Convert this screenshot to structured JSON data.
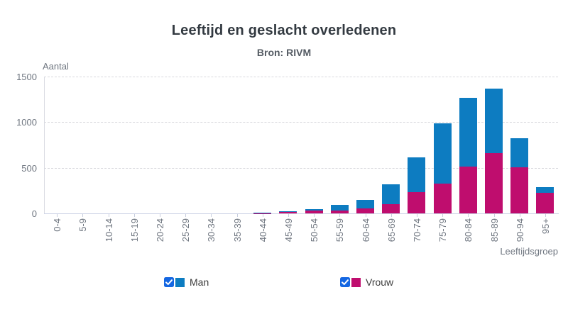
{
  "header": {
    "title": "Leeftijd en geslacht overledenen",
    "subtitle": "Bron: RIVM"
  },
  "colors": {
    "man_blue": "#0d7cc1",
    "vrouw_magenta": "#bf0d6e",
    "checkbox_blue": "#1567e2",
    "grid_gray": "#d9d9de",
    "axis_text_gray": "#6f7680"
  },
  "chart_data": {
    "type": "bar",
    "stacked": true,
    "title": "Leeftijd en geslacht overledenen",
    "subtitle": "Bron: RIVM",
    "xlabel": "Leeftijdsgroep",
    "ylabel": "Aantal",
    "ylim": [
      0,
      1500
    ],
    "yticks": [
      0,
      500,
      1000,
      1500
    ],
    "grid": "horizontal dashed",
    "legend_position": "bottom",
    "stack_order_bottom_to_top": [
      "Vrouw",
      "Man"
    ],
    "categories": [
      "0-4",
      "5-9",
      "10-14",
      "15-19",
      "20-24",
      "25-29",
      "30-34",
      "35-39",
      "40-44",
      "45-49",
      "50-54",
      "55-59",
      "60-64",
      "65-69",
      "70-74",
      "75-79",
      "80-84",
      "85-89",
      "90-94",
      "95+"
    ],
    "series": [
      {
        "name": "Man",
        "color": "#0d7cc1",
        "checkbox_checked": true,
        "values": [
          0,
          0,
          0,
          0,
          0,
          0,
          0,
          0,
          2,
          14,
          13,
          60,
          94,
          215,
          380,
          665,
          750,
          705,
          315,
          68
        ]
      },
      {
        "name": "Vrouw",
        "color": "#bf0d6e",
        "checkbox_checked": true,
        "values": [
          0,
          0,
          0,
          0,
          0,
          0,
          0,
          0,
          2,
          13,
          30,
          33,
          52,
          104,
          235,
          325,
          515,
          660,
          505,
          222
        ]
      }
    ]
  }
}
